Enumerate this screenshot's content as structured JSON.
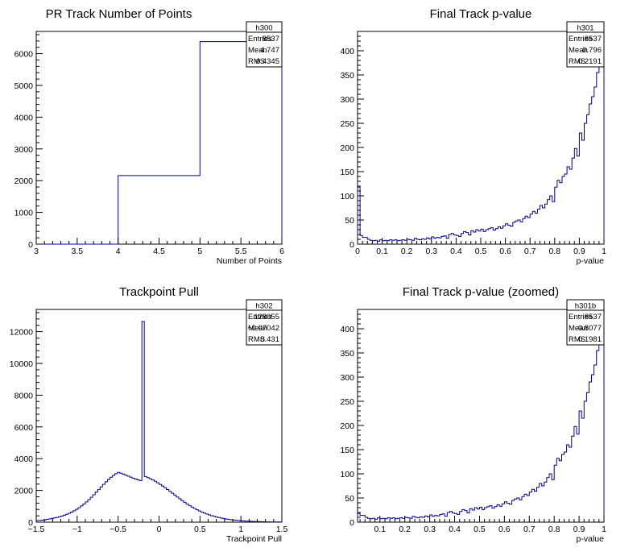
{
  "chart_data": [
    {
      "id": "h300",
      "type": "histogram",
      "title": "PR Track Number of Points",
      "xlabel": "Number of Points",
      "ylabel": "",
      "xlim": [
        3,
        6
      ],
      "ylim": [
        0,
        6700
      ],
      "xticks": [
        3,
        3.5,
        4,
        4.5,
        5,
        5.5,
        6
      ],
      "xtick_labels": [
        "3",
        "3.5",
        "4",
        "4.5",
        "5",
        "5.5",
        "6"
      ],
      "yticks": [
        0,
        1000,
        2000,
        3000,
        4000,
        5000,
        6000
      ],
      "ytick_labels": [
        "0",
        "1000",
        "2000",
        "3000",
        "4000",
        "5000",
        "6000"
      ],
      "edges": [
        3,
        4,
        5,
        6
      ],
      "values": [
        0,
        2160,
        6380
      ],
      "color": "#000099",
      "stats": {
        "name": "h300",
        "rows": [
          {
            "label": "Entries",
            "value": "8537"
          },
          {
            "label": "Mean",
            "value": "4.747"
          },
          {
            "label": "RMS",
            "value": "0.4345"
          }
        ]
      }
    },
    {
      "id": "h301",
      "type": "histogram",
      "title": "Final Track p-value",
      "xlabel": "p-value",
      "ylabel": "",
      "xlim": [
        0,
        1
      ],
      "ylim": [
        0,
        440
      ],
      "xticks": [
        0,
        0.1,
        0.2,
        0.3,
        0.4,
        0.5,
        0.6,
        0.7,
        0.8,
        0.9,
        1
      ],
      "xtick_labels": [
        "0",
        "0.1",
        "0.2",
        "0.3",
        "0.4",
        "0.5",
        "0.6",
        "0.7",
        "0.8",
        "0.9",
        "1"
      ],
      "yticks": [
        0,
        50,
        100,
        150,
        200,
        250,
        300,
        350,
        400
      ],
      "ytick_labels": [
        "0",
        "50",
        "100",
        "150",
        "200",
        "250",
        "300",
        "350",
        "400"
      ],
      "edges_start": 0,
      "bin_width": 0.01,
      "values": [
        118,
        18,
        14,
        14,
        10,
        8,
        7,
        8,
        6,
        9,
        7,
        8,
        7,
        9,
        8,
        9,
        7,
        8,
        9,
        8,
        10,
        9,
        8,
        12,
        10,
        9,
        11,
        10,
        13,
        11,
        15,
        12,
        14,
        13,
        16,
        17,
        12,
        20,
        22,
        19,
        18,
        16,
        22,
        26,
        24,
        19,
        28,
        25,
        30,
        27,
        31,
        26,
        30,
        32,
        34,
        29,
        32,
        36,
        33,
        38,
        42,
        39,
        37,
        45,
        48,
        50,
        46,
        53,
        58,
        55,
        62,
        68,
        64,
        72,
        80,
        75,
        83,
        92,
        100,
        88,
        118,
        132,
        127,
        140,
        145,
        160,
        155,
        178,
        198,
        182,
        230,
        215,
        250,
        268,
        290,
        305,
        325,
        355,
        368,
        380
      ],
      "color": "#000099",
      "stats": {
        "name": "h301",
        "rows": [
          {
            "label": "Entries",
            "value": "8537"
          },
          {
            "label": "Mean",
            "value": "0.796"
          },
          {
            "label": "RMS",
            "value": "0.2191"
          }
        ]
      }
    },
    {
      "id": "h302",
      "type": "histogram",
      "title": "Trackpoint Pull",
      "xlabel": "Trackpoint Pull",
      "ylabel": "",
      "xlim": [
        -1.5,
        1.5
      ],
      "ylim": [
        0,
        13400
      ],
      "xticks": [
        -1.5,
        -1,
        -0.5,
        0,
        0.5,
        1,
        1.5
      ],
      "xtick_labels": [
        "−1.5",
        "−1",
        "−0.5",
        "0",
        "0.5",
        "1",
        "1.5"
      ],
      "yticks": [
        0,
        2000,
        4000,
        6000,
        8000,
        10000,
        12000
      ],
      "ytick_labels": [
        "0",
        "2000",
        "4000",
        "6000",
        "8000",
        "10000",
        "12000"
      ],
      "edges_start": -1.5,
      "bin_width": 0.03,
      "values": [
        100,
        106,
        127,
        149,
        177,
        202,
        232,
        265,
        301,
        342,
        387,
        437,
        493,
        559,
        633,
        715,
        806,
        908,
        1021,
        1143,
        1276,
        1418,
        1568,
        1725,
        1887,
        2053,
        2219,
        2383,
        2541,
        2690,
        2826,
        2946,
        3049,
        3132,
        3083,
        3027,
        2965,
        2900,
        2835,
        2773,
        2716,
        2664,
        2618,
        12640,
        2873,
        2808,
        2737,
        2658,
        2573,
        2481,
        2383,
        2280,
        2171,
        2058,
        1942,
        1824,
        1705,
        1587,
        1471,
        1358,
        1248,
        1143,
        1044,
        950,
        862,
        780,
        704,
        634,
        570,
        511,
        457,
        408,
        363,
        323,
        287,
        254,
        224,
        198,
        174,
        153,
        134,
        117,
        103,
        90,
        78,
        68,
        59,
        51,
        44,
        38,
        33,
        28,
        24,
        21,
        18,
        15,
        13,
        11,
        10,
        8
      ],
      "color": "#000099",
      "stats": {
        "name": "h302",
        "rows": [
          {
            "label": "Entries",
            "value": "128055"
          },
          {
            "label": "Mean",
            "value": "−0.07042"
          },
          {
            "label": "RMS",
            "value": "0.431"
          }
        ]
      }
    },
    {
      "id": "h301b",
      "type": "histogram",
      "title": "Final Track p-value (zoomed)",
      "xlabel": "p-value",
      "ylabel": "",
      "xlim": [
        0.01,
        1
      ],
      "ylim": [
        0,
        440
      ],
      "xticks": [
        0.1,
        0.2,
        0.3,
        0.4,
        0.5,
        0.6,
        0.7,
        0.8,
        0.9,
        1
      ],
      "xtick_labels": [
        "0.1",
        "0.2",
        "0.3",
        "0.4",
        "0.5",
        "0.6",
        "0.7",
        "0.8",
        "0.9",
        "1"
      ],
      "yticks": [
        0,
        50,
        100,
        150,
        200,
        250,
        300,
        350,
        400
      ],
      "ytick_labels": [
        "0",
        "50",
        "100",
        "150",
        "200",
        "250",
        "300",
        "350",
        "400"
      ],
      "edges_start": 0.01,
      "bin_width": 0.01,
      "values": [
        18,
        14,
        14,
        10,
        8,
        7,
        8,
        6,
        9,
        7,
        8,
        7,
        9,
        8,
        9,
        7,
        8,
        9,
        8,
        10,
        9,
        8,
        12,
        10,
        9,
        11,
        10,
        13,
        11,
        15,
        12,
        14,
        13,
        16,
        17,
        12,
        20,
        22,
        19,
        18,
        16,
        22,
        26,
        24,
        19,
        28,
        25,
        30,
        27,
        31,
        26,
        30,
        32,
        34,
        29,
        32,
        36,
        33,
        38,
        42,
        39,
        37,
        45,
        48,
        50,
        46,
        53,
        58,
        55,
        62,
        68,
        64,
        72,
        80,
        75,
        83,
        92,
        100,
        88,
        118,
        132,
        127,
        140,
        145,
        160,
        155,
        178,
        198,
        182,
        230,
        215,
        250,
        268,
        290,
        305,
        325,
        355,
        368,
        380
      ],
      "color": "#000099",
      "stats": {
        "name": "h301b",
        "rows": [
          {
            "label": "Entries",
            "value": "8537"
          },
          {
            "label": "Mean",
            "value": "0.8077"
          },
          {
            "label": "RMS",
            "value": "0.1981"
          }
        ]
      }
    }
  ]
}
